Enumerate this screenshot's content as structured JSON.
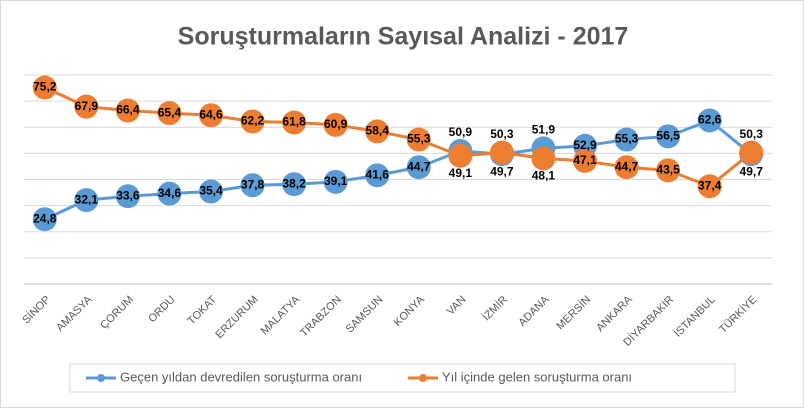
{
  "chart_data": {
    "type": "line",
    "title": "Soruşturmaların Sayısal Analizi - 2017",
    "categories": [
      "SİNOP",
      "AMASYA",
      "ÇORUM",
      "ORDU",
      "TOKAT",
      "ERZURUM",
      "MALATYA",
      "TRABZON",
      "SAMSUN",
      "KONYA",
      "VAN",
      "İZMİR",
      "ADANA",
      "MERSİN",
      "ANKARA",
      "DİYARBAKIR",
      "İSTANBUL",
      "TÜRKİYE"
    ],
    "series": [
      {
        "name": "Geçen yıldan devredilen soruşturma oranı",
        "color": "#5b9bd5",
        "values": [
          24.8,
          32.1,
          33.6,
          34.6,
          35.4,
          37.8,
          38.2,
          39.1,
          41.6,
          44.7,
          50.9,
          49.7,
          51.9,
          52.9,
          55.3,
          56.5,
          62.6,
          49.7
        ],
        "value_labels": [
          "24,8",
          "32,1",
          "33,6",
          "34,6",
          "35,4",
          "37,8",
          "38,2",
          "39,1",
          "41,6",
          "44,7",
          "50,9",
          "49,7",
          "51,9",
          "52,9",
          "55,3",
          "56,5",
          "62,6",
          "49,7"
        ]
      },
      {
        "name": "Yıl içinde gelen soruşturma oranı",
        "color": "#ed7d31",
        "values": [
          75.2,
          67.9,
          66.4,
          65.4,
          64.6,
          62.2,
          61.8,
          60.9,
          58.4,
          55.3,
          49.1,
          50.3,
          48.1,
          47.1,
          44.7,
          43.5,
          37.4,
          50.3
        ],
        "value_labels": [
          "75,2",
          "67,9",
          "66,4",
          "65,4",
          "64,6",
          "62,2",
          "61,8",
          "60,9",
          "58,4",
          "55,3",
          "49,1",
          "50,3",
          "48,1",
          "47,1",
          "44,7",
          "43,5",
          "37,4",
          "50,3"
        ]
      }
    ],
    "ylim": [
      0,
      80
    ],
    "yticks": [
      0,
      10,
      20,
      30,
      40,
      50,
      60,
      70,
      80
    ],
    "grid": true,
    "legend": "bottom"
  }
}
